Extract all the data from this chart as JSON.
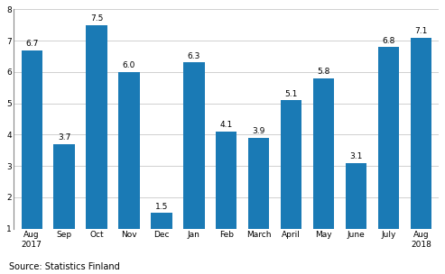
{
  "categories": [
    "Aug\n2017",
    "Sep",
    "Oct",
    "Nov",
    "Dec",
    "Jan",
    "Feb",
    "March",
    "April",
    "May",
    "June",
    "July",
    "Aug\n2018"
  ],
  "values": [
    6.7,
    3.7,
    7.5,
    6.0,
    1.5,
    6.3,
    4.1,
    3.9,
    5.1,
    5.8,
    3.1,
    6.8,
    7.1
  ],
  "bar_color": "#1a7ab5",
  "ylim": [
    1,
    8
  ],
  "yticks": [
    1,
    2,
    3,
    4,
    5,
    6,
    7,
    8
  ],
  "source_text": "Source: Statistics Finland",
  "grid_color": "#d0d0d0",
  "bar_width": 0.65,
  "label_fontsize": 6.5,
  "tick_fontsize": 6.5,
  "source_fontsize": 7.0,
  "baseline": 1
}
